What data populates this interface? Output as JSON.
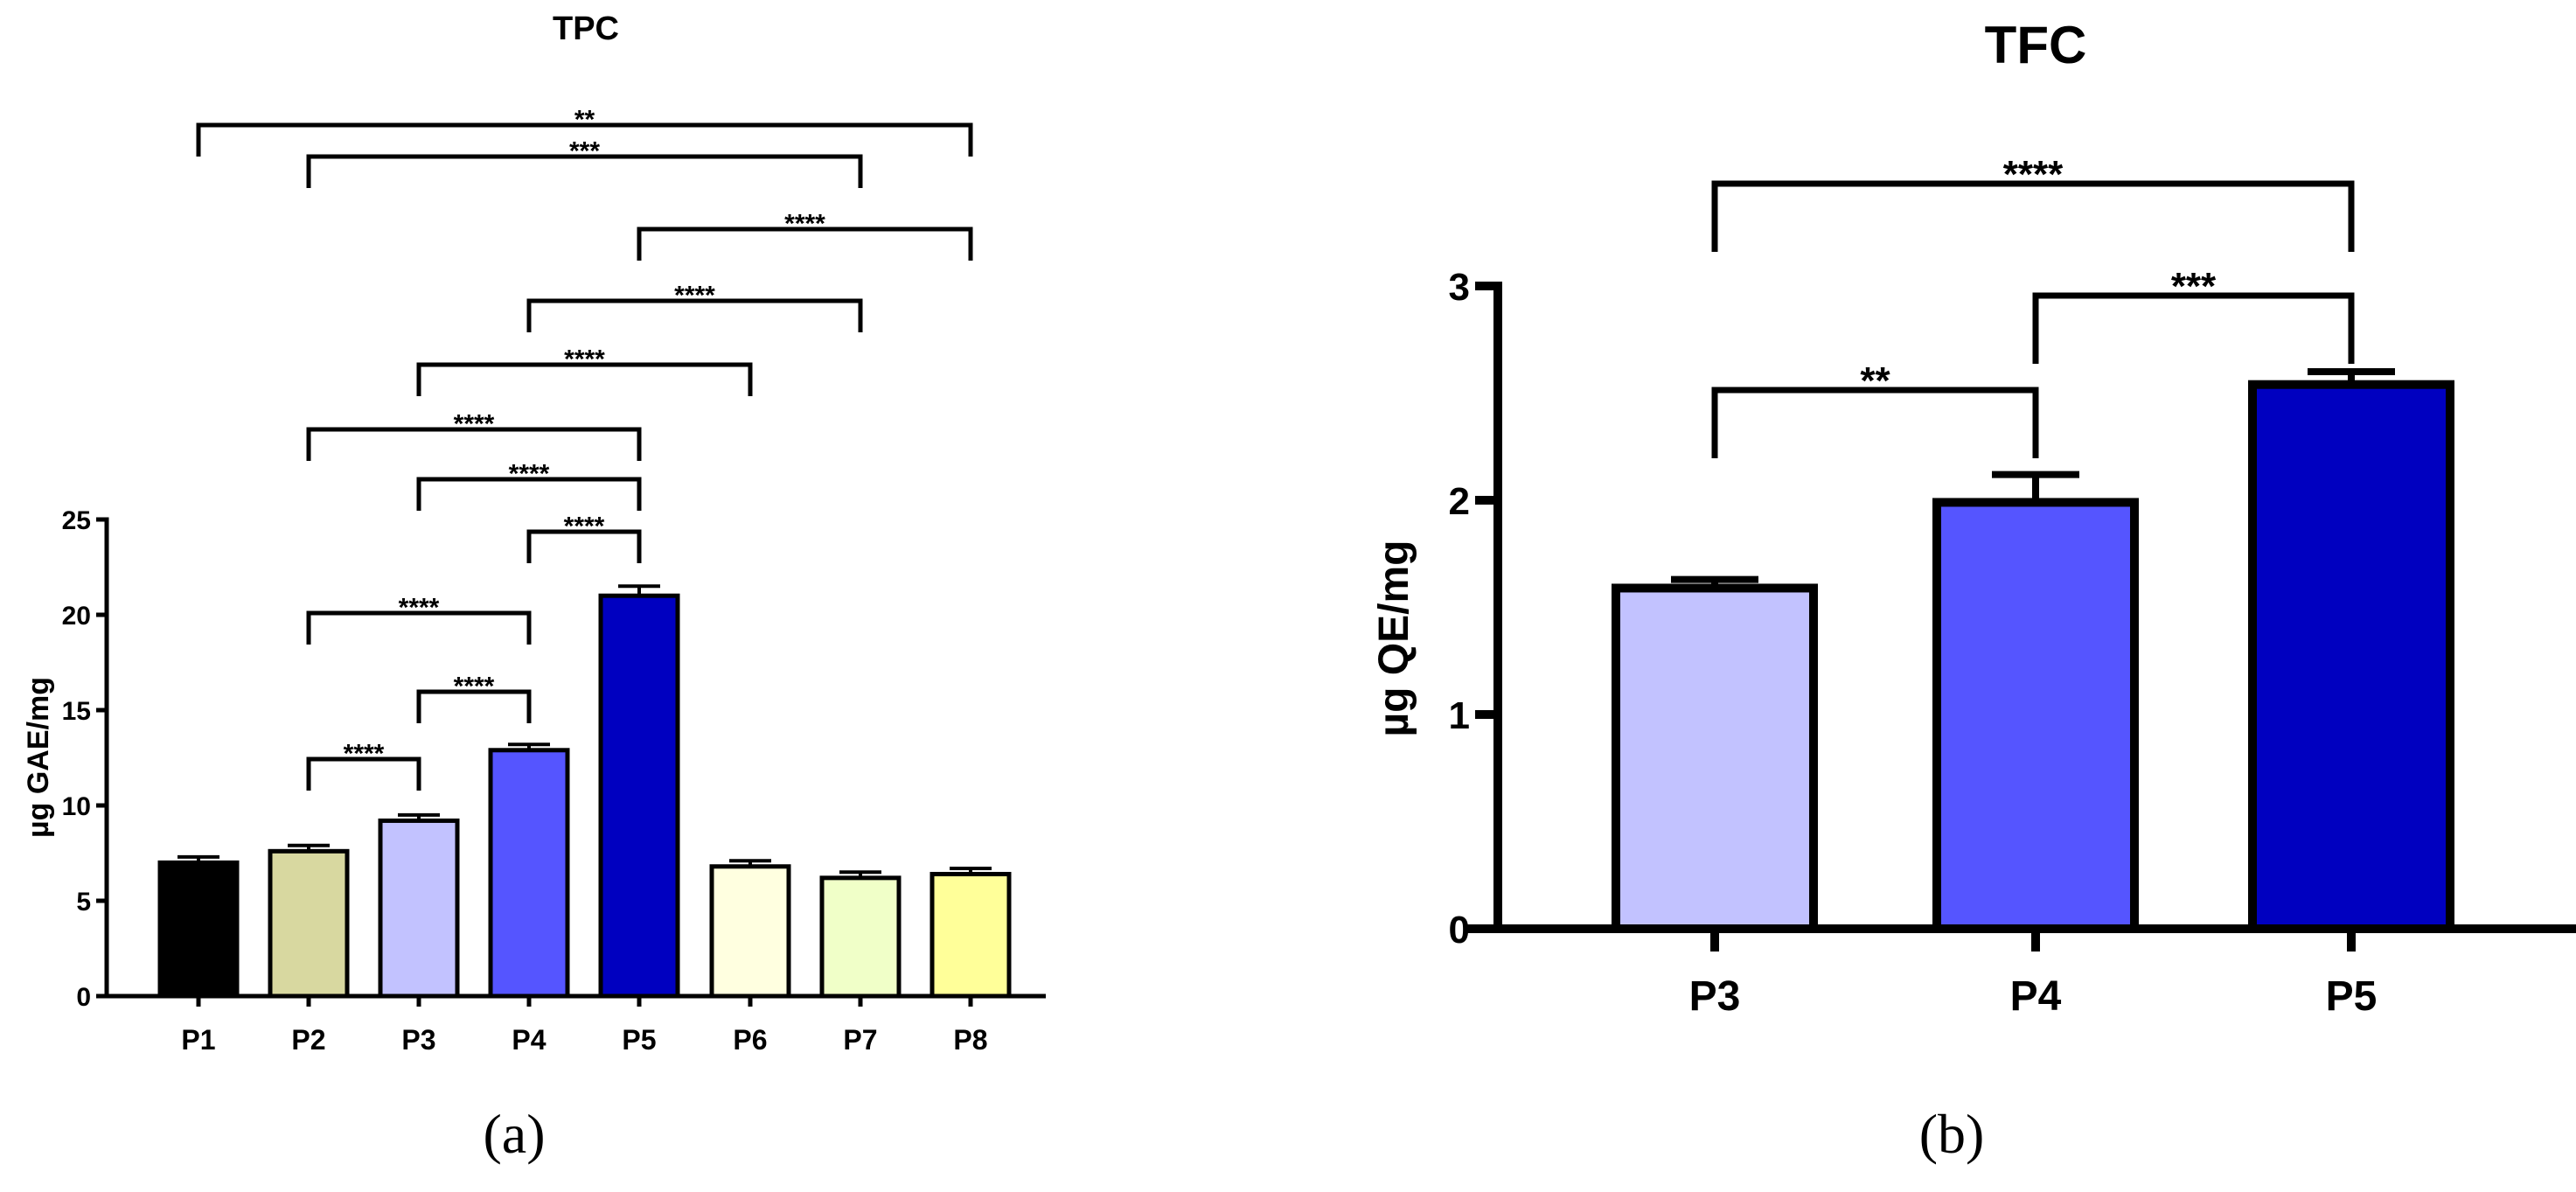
{
  "chart_data": [
    {
      "type": "bar",
      "panel_label": "(a)",
      "title": "TPC",
      "ylabel": "µg GAE/mg",
      "xlabel": "",
      "ylim": [
        0,
        25
      ],
      "yticks": [
        0,
        5,
        10,
        15,
        20,
        25
      ],
      "categories": [
        "P1",
        "P2",
        "P3",
        "P4",
        "P5",
        "P6",
        "P7",
        "P8"
      ],
      "values": [
        7.0,
        7.6,
        9.2,
        12.9,
        21.0,
        6.8,
        6.2,
        6.4
      ],
      "errors": [
        0.3,
        0.3,
        0.3,
        0.3,
        0.5,
        0.3,
        0.3,
        0.3
      ],
      "colors": [
        "#000000",
        "#d8d8a0",
        "#c2c2ff",
        "#5555ff",
        "#0000c0",
        "#ffffe0",
        "#f0ffc8",
        "#ffff99"
      ],
      "significance": [
        {
          "from": "P1",
          "to": "P8",
          "label": "**"
        },
        {
          "from": "P2",
          "to": "P7",
          "label": "***"
        },
        {
          "from": "P5",
          "to": "P8",
          "label": "****"
        },
        {
          "from": "P4",
          "to": "P7",
          "label": "****"
        },
        {
          "from": "P3",
          "to": "P6",
          "label": "****"
        },
        {
          "from": "P2",
          "to": "P5",
          "label": "****"
        },
        {
          "from": "P3",
          "to": "P5",
          "label": "****"
        },
        {
          "from": "P4",
          "to": "P5",
          "label": "****"
        },
        {
          "from": "P2",
          "to": "P4",
          "label": "****"
        },
        {
          "from": "P3",
          "to": "P4",
          "label": "****"
        },
        {
          "from": "P2",
          "to": "P3",
          "label": "****"
        }
      ]
    },
    {
      "type": "bar",
      "panel_label": "(b)",
      "title": "TFC",
      "ylabel": "µg QE/mg",
      "xlabel": "",
      "ylim": [
        0,
        3
      ],
      "yticks": [
        0,
        1,
        2,
        3
      ],
      "categories": [
        "P3",
        "P4",
        "P5"
      ],
      "values": [
        1.59,
        1.99,
        2.54
      ],
      "errors": [
        0.04,
        0.13,
        0.06
      ],
      "colors": [
        "#c2c2ff",
        "#5555ff",
        "#0000c0"
      ],
      "significance": [
        {
          "from": "P3",
          "to": "P5",
          "label": "****"
        },
        {
          "from": "P4",
          "to": "P5",
          "label": "***"
        },
        {
          "from": "P3",
          "to": "P4",
          "label": "**"
        }
      ]
    }
  ]
}
